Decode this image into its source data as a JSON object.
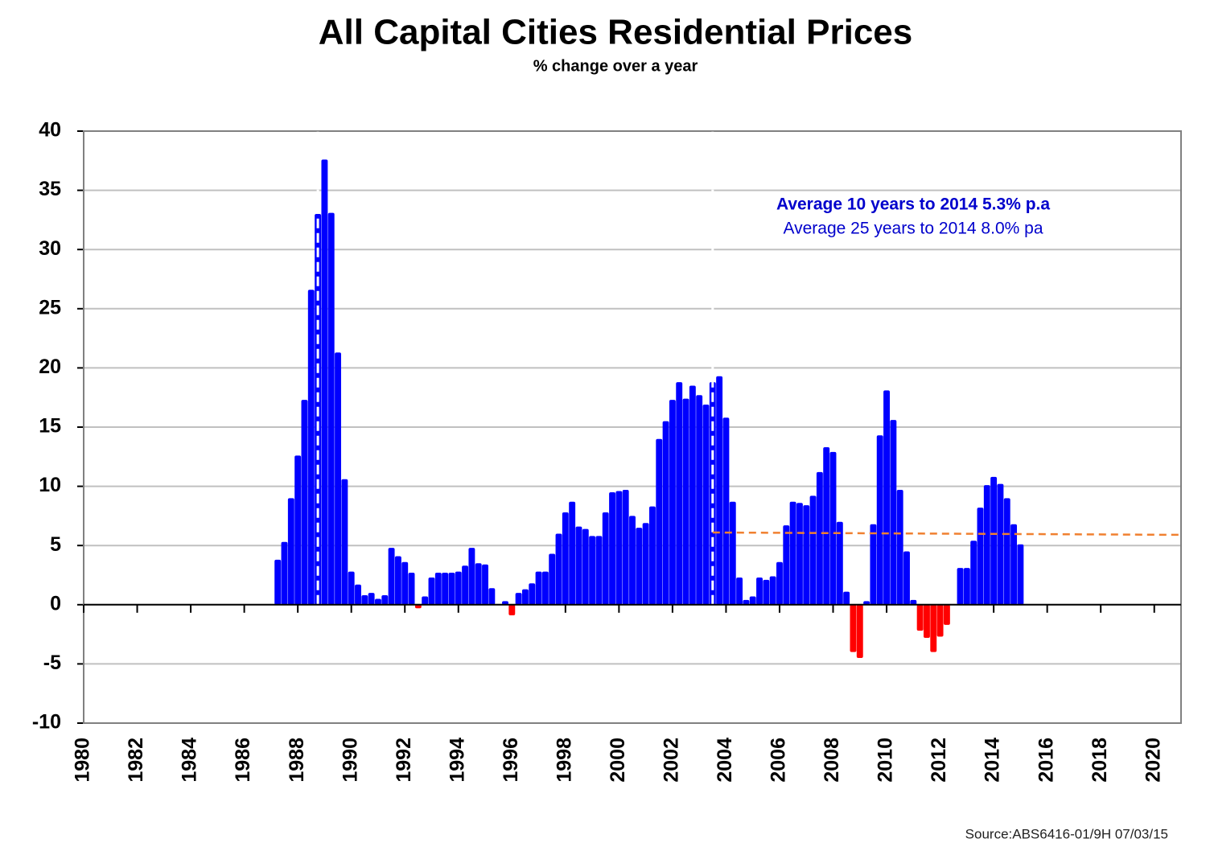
{
  "chart_data": {
    "type": "bar",
    "title": "All Capital Cities Residential Prices",
    "subtitle": "% change over a year",
    "annotations": [
      "Average 10 years to 2014  5.3% p.a",
      "Average 25 years to 2014  8.0% pa"
    ],
    "source": "Source:ABS6416-01/9H 07/03/15",
    "x": [
      1987.25,
      1987.5,
      1987.75,
      1988,
      1988.25,
      1988.5,
      1988.75,
      1989,
      1989.25,
      1989.5,
      1989.75,
      1990,
      1990.25,
      1990.5,
      1990.75,
      1991,
      1991.25,
      1991.5,
      1991.75,
      1992,
      1992.25,
      1992.5,
      1992.75,
      1993,
      1993.25,
      1993.5,
      1993.75,
      1994,
      1994.25,
      1994.5,
      1994.75,
      1995,
      1995.25,
      1995.5,
      1995.75,
      1996,
      1996.25,
      1996.5,
      1996.75,
      1997,
      1997.25,
      1997.5,
      1997.75,
      1998,
      1998.25,
      1998.5,
      1998.75,
      1999,
      1999.25,
      1999.5,
      1999.75,
      2000,
      2000.25,
      2000.5,
      2000.75,
      2001,
      2001.25,
      2001.5,
      2001.75,
      2002,
      2002.25,
      2002.5,
      2002.75,
      2003,
      2003.25,
      2003.5,
      2003.75,
      2004,
      2004.25,
      2004.5,
      2004.75,
      2005,
      2005.25,
      2005.5,
      2005.75,
      2006,
      2006.25,
      2006.5,
      2006.75,
      2007,
      2007.25,
      2007.5,
      2007.75,
      2008,
      2008.25,
      2008.5,
      2008.75,
      2009,
      2009.25,
      2009.5,
      2009.75,
      2010,
      2010.25,
      2010.5,
      2010.75,
      2011,
      2011.25,
      2011.5,
      2011.75,
      2012,
      2012.25,
      2012.5,
      2012.75,
      2013,
      2013.25,
      2013.5,
      2013.75,
      2014,
      2014.25,
      2014.5,
      2014.75,
      2015
    ],
    "values": [
      3.8,
      5.3,
      9.0,
      12.6,
      17.3,
      26.6,
      33.0,
      37.6,
      33.1,
      21.3,
      10.6,
      2.8,
      1.7,
      0.8,
      1.0,
      0.5,
      0.8,
      4.8,
      4.1,
      3.6,
      2.7,
      -0.3,
      0.7,
      2.3,
      2.7,
      2.7,
      2.7,
      2.8,
      3.3,
      4.8,
      3.5,
      3.4,
      1.4,
      0,
      0.3,
      -0.9,
      1.0,
      1.3,
      1.8,
      2.8,
      2.8,
      4.3,
      6.0,
      7.8,
      8.7,
      6.6,
      6.4,
      5.8,
      5.8,
      7.8,
      9.5,
      9.6,
      9.7,
      7.5,
      6.5,
      6.9,
      8.3,
      14.0,
      15.5,
      17.3,
      18.8,
      17.4,
      18.5,
      17.7,
      16.9,
      18.8,
      19.3,
      15.8,
      8.7,
      2.3,
      0.4,
      0.7,
      2.3,
      2.1,
      2.4,
      3.6,
      6.7,
      8.7,
      8.6,
      8.4,
      9.2,
      11.2,
      13.3,
      12.9,
      7.0,
      1.1,
      -4.0,
      -4.5,
      0.3,
      6.8,
      14.3,
      18.1,
      15.6,
      9.7,
      4.5,
      0.4,
      -2.2,
      -2.8,
      -4.0,
      -2.7,
      -1.7,
      0,
      3.1,
      3.1,
      5.4,
      8.2,
      10.1,
      10.8,
      10.2,
      9.0,
      6.8,
      5.1
    ],
    "positive_color": "#0000ff",
    "negative_color": "#ff0000",
    "markers": [
      1988.75,
      2003.5
    ],
    "reference_line": {
      "x": [
        2003.5,
        2021
      ],
      "values": [
        6.1,
        5.9
      ],
      "color": "#f08030"
    },
    "xlim": [
      1980,
      2021
    ],
    "xticks": [
      1980,
      1982,
      1984,
      1986,
      1988,
      1990,
      1992,
      1994,
      1996,
      1998,
      2000,
      2002,
      2004,
      2006,
      2008,
      2010,
      2012,
      2014,
      2016,
      2018,
      2020
    ],
    "ylim": [
      -10,
      40
    ],
    "yticks": [
      -10,
      -5,
      0,
      5,
      10,
      15,
      20,
      25,
      30,
      35,
      40
    ],
    "grid": true
  }
}
